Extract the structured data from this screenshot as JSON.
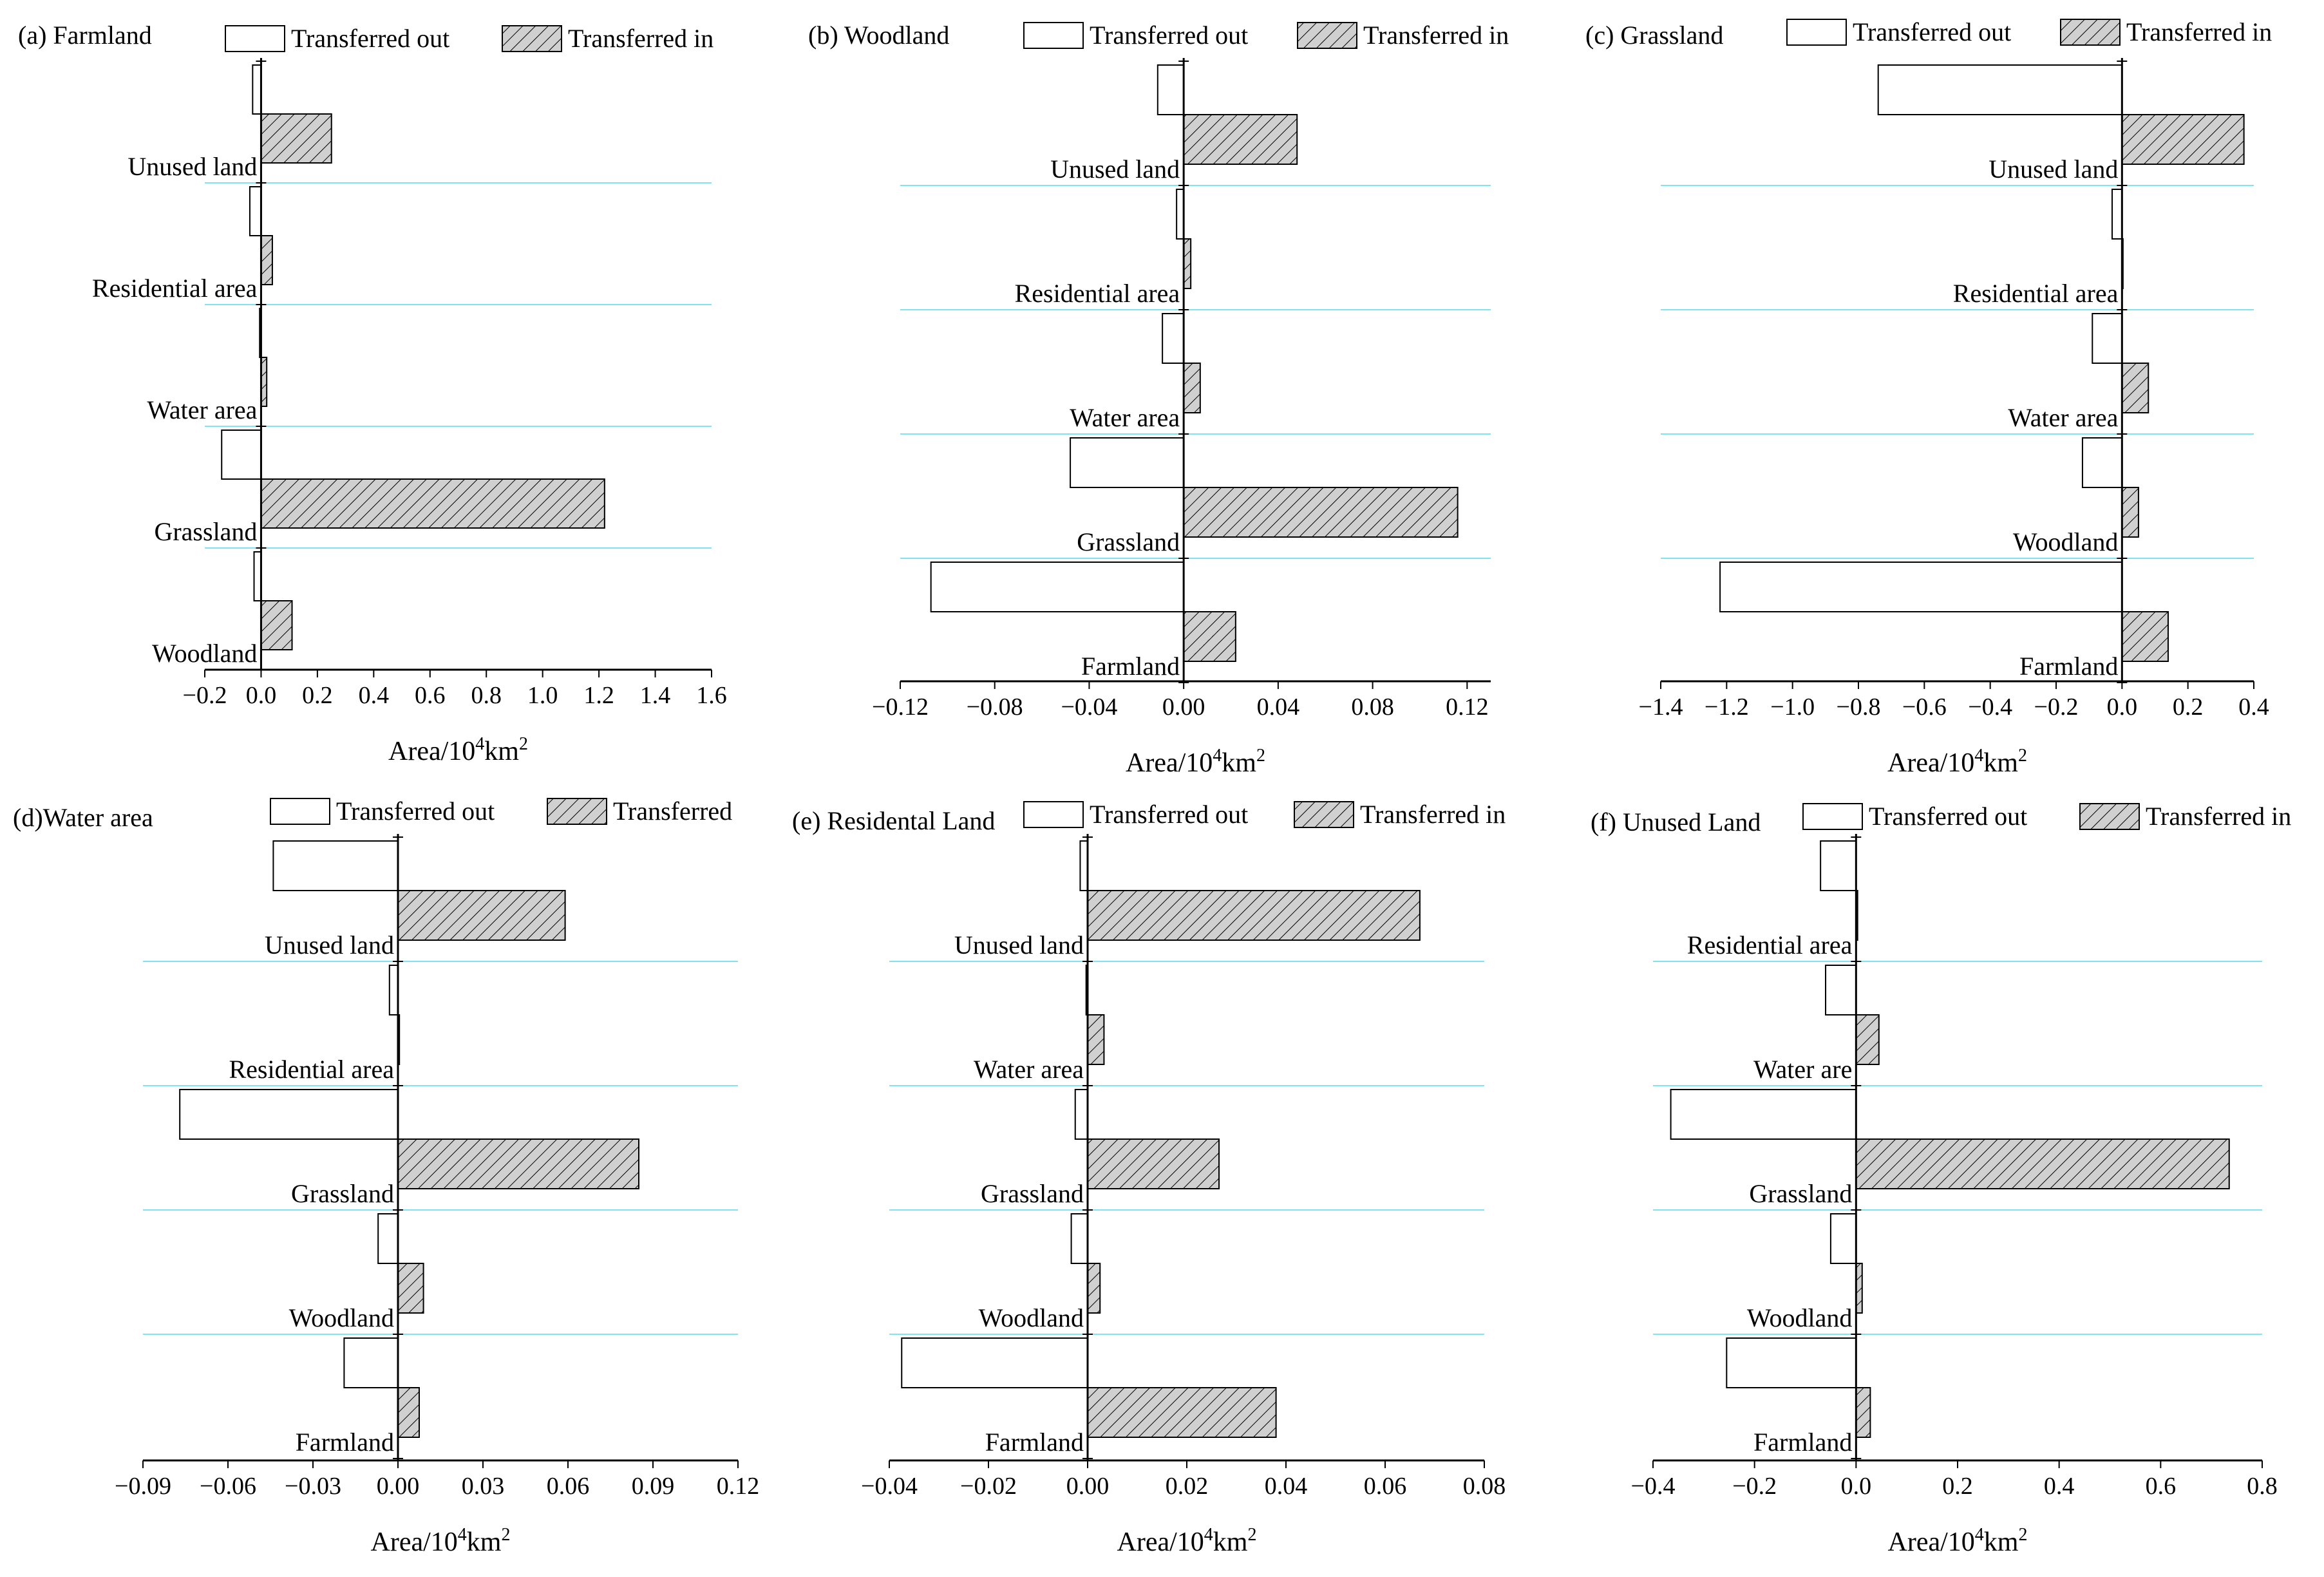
{
  "figure": {
    "legend_out_label": "Transferred out",
    "legend_in_label": "Transferred in",
    "colors": {
      "out_fill": "#ffffff",
      "in_fill": "#d0d0d0",
      "hatch": "#000000",
      "separator": "#7fe3f0",
      "axis": "#000000"
    }
  },
  "chart_data": [
    {
      "id": "a",
      "type": "bar",
      "orientation": "horizontal",
      "title": "(a) Farmland",
      "legend_out": "Transferred out",
      "legend_in": "Transferred in",
      "xlabel": "Area/10",
      "xlabel_sup1": "4",
      "xlabel_mid": "km",
      "xlabel_sup2": "2",
      "categories": [
        "Unused land",
        "Residential area",
        "Water area",
        "Grassland",
        "Woodland"
      ],
      "series": [
        {
          "name": "Transferred out",
          "values": [
            -0.03,
            -0.04,
            -0.005,
            -0.14,
            -0.025
          ]
        },
        {
          "name": "Transferred in",
          "values": [
            0.25,
            0.04,
            0.02,
            1.22,
            0.11
          ]
        }
      ],
      "xlim": [
        -0.2,
        1.6
      ],
      "xticks": [
        -0.2,
        0.0,
        0.2,
        0.4,
        0.6,
        0.8,
        1.0,
        1.2,
        1.4,
        1.6
      ],
      "xtick_labels": [
        "−0.2",
        "0.0",
        "0.2",
        "0.4",
        "0.6",
        "0.8",
        "1.0",
        "1.2",
        "1.4",
        "1.6"
      ]
    },
    {
      "id": "b",
      "type": "bar",
      "orientation": "horizontal",
      "title": "(b) Woodland",
      "legend_out": "Transferred out",
      "legend_in": "Transferred in",
      "xlabel": "Area/10",
      "xlabel_sup1": "4",
      "xlabel_mid": "km",
      "xlabel_sup2": "2",
      "categories": [
        "Unused land",
        "Residential area",
        "Water area",
        "Grassland",
        "Farmland"
      ],
      "series": [
        {
          "name": "Transferred out",
          "values": [
            -0.011,
            -0.003,
            -0.009,
            -0.048,
            -0.107
          ]
        },
        {
          "name": "Transferred in",
          "values": [
            0.048,
            0.003,
            0.007,
            0.116,
            0.022
          ]
        }
      ],
      "xlim": [
        -0.12,
        0.13
      ],
      "xticks": [
        -0.12,
        -0.08,
        -0.04,
        0.0,
        0.04,
        0.08,
        0.12
      ],
      "xtick_labels": [
        "−0.12",
        "−0.08",
        "−0.04",
        "0.00",
        "0.04",
        "0.08",
        "0.12"
      ]
    },
    {
      "id": "c",
      "type": "bar",
      "orientation": "horizontal",
      "title": "(c) Grassland",
      "legend_out": "Transferred out",
      "legend_in": "Transferred in",
      "xlabel": "Area/10",
      "xlabel_sup1": "4",
      "xlabel_mid": "km",
      "xlabel_sup2": "2",
      "categories": [
        "Unused land",
        "Residential area",
        "Water area",
        "Woodland",
        "Farmland"
      ],
      "series": [
        {
          "name": "Transferred out",
          "values": [
            -0.74,
            -0.03,
            -0.09,
            -0.12,
            -1.22
          ]
        },
        {
          "name": "Transferred in",
          "values": [
            0.37,
            0.0,
            0.08,
            0.05,
            0.14
          ]
        }
      ],
      "xlim": [
        -1.4,
        0.4
      ],
      "xticks": [
        -1.4,
        -1.2,
        -1.0,
        -0.8,
        -0.6,
        -0.4,
        -0.2,
        0.0,
        0.2,
        0.4
      ],
      "xtick_labels": [
        "−1.4",
        "−1.2",
        "−1.0",
        "−0.8",
        "−0.6",
        "−0.4",
        "−0.2",
        "0.0",
        "0.2",
        "0.4"
      ]
    },
    {
      "id": "d",
      "type": "bar",
      "orientation": "horizontal",
      "title": "(d)Water area",
      "legend_out": "Transferred out",
      "legend_in": "Transferred",
      "xlabel": "Area/10",
      "xlabel_sup1": "4",
      "xlabel_mid": "km",
      "xlabel_sup2": "2",
      "categories": [
        "Unused land",
        "Residential area",
        "Grassland",
        "Woodland",
        "Farmland"
      ],
      "series": [
        {
          "name": "Transferred out",
          "values": [
            -0.044,
            -0.003,
            -0.077,
            -0.007,
            -0.019
          ]
        },
        {
          "name": "Transferred in",
          "values": [
            0.059,
            0.0005,
            0.085,
            0.009,
            0.0075
          ]
        }
      ],
      "xlim": [
        -0.09,
        0.12
      ],
      "xticks": [
        -0.09,
        -0.06,
        -0.03,
        0.0,
        0.03,
        0.06,
        0.09,
        0.12
      ],
      "xtick_labels": [
        "−0.09",
        "−0.06",
        "−0.03",
        "0.00",
        "0.03",
        "0.06",
        "0.09",
        "0.12"
      ]
    },
    {
      "id": "e",
      "type": "bar",
      "orientation": "horizontal",
      "title": "(e) Residental Land",
      "legend_out": "Transferred out",
      "legend_in": "Transferred in",
      "xlabel": "Area/10",
      "xlabel_sup1": "4",
      "xlabel_mid": "km",
      "xlabel_sup2": "2",
      "categories": [
        "Unused land",
        "Water area",
        "Grassland",
        "Woodland",
        "Farmland"
      ],
      "series": [
        {
          "name": "Transferred out",
          "values": [
            -0.0015,
            -0.0003,
            -0.0025,
            -0.0033,
            -0.0375
          ]
        },
        {
          "name": "Transferred in",
          "values": [
            0.067,
            0.0033,
            0.0265,
            0.0025,
            0.038
          ]
        }
      ],
      "xlim": [
        -0.04,
        0.08
      ],
      "xticks": [
        -0.04,
        -0.02,
        0.0,
        0.02,
        0.04,
        0.06,
        0.08
      ],
      "xtick_labels": [
        "−0.04",
        "−0.02",
        "0.00",
        "0.02",
        "0.04",
        "0.06",
        "0.08"
      ]
    },
    {
      "id": "f",
      "type": "bar",
      "orientation": "horizontal",
      "title": "(f) Unused Land",
      "legend_out": "Transferred out",
      "legend_in": "Transferred in",
      "xlabel": "Area/10",
      "xlabel_sup1": "4",
      "xlabel_mid": "km",
      "xlabel_sup2": "2",
      "categories": [
        "Residential area",
        "Water are",
        "Grassland",
        "Woodland",
        "Farmland"
      ],
      "series": [
        {
          "name": "Transferred out",
          "values": [
            -0.07,
            -0.06,
            -0.365,
            -0.05,
            -0.255
          ]
        },
        {
          "name": "Transferred in",
          "values": [
            0.003,
            0.045,
            0.735,
            0.012,
            0.028
          ]
        }
      ],
      "xlim": [
        -0.4,
        0.8
      ],
      "xticks": [
        -0.4,
        -0.2,
        0.0,
        0.2,
        0.4,
        0.6,
        0.8
      ],
      "xtick_labels": [
        "−0.4",
        "−0.2",
        "0.0",
        "0.2",
        "0.4",
        "0.6",
        "0.8"
      ]
    }
  ]
}
